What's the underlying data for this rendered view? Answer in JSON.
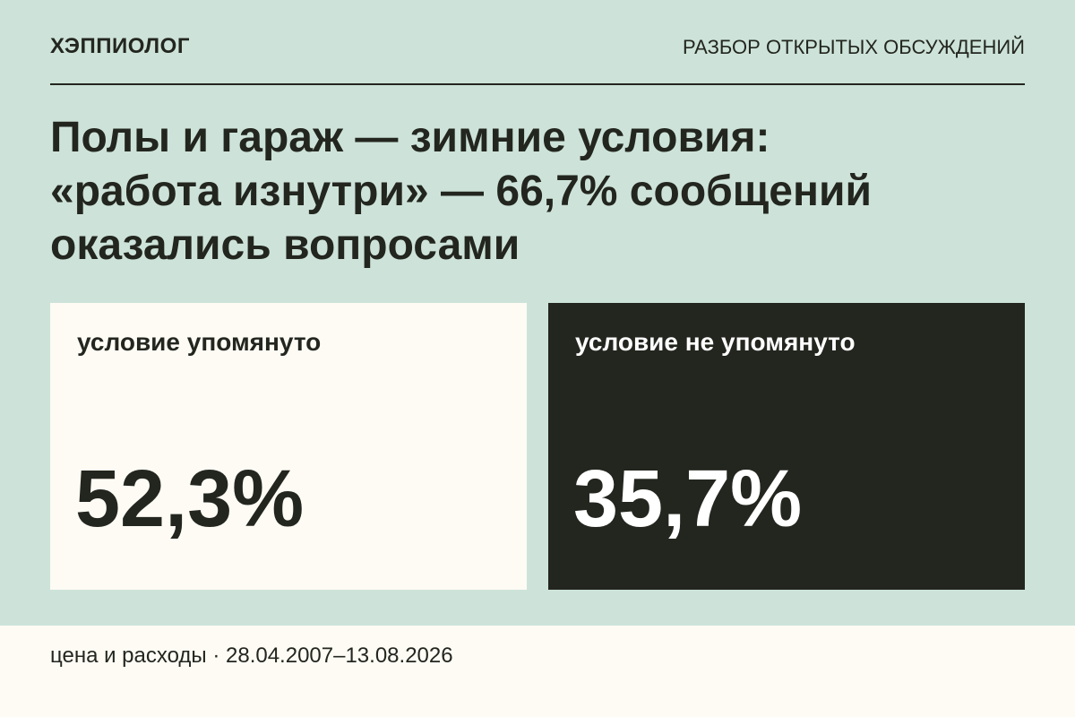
{
  "header": {
    "brand": "ХЭППИОЛОГ",
    "section": "РАЗБОР ОТКРЫТЫХ ОБСУЖДЕНИЙ"
  },
  "title": [
    "Полы и гараж — зимние условия:",
    "«работа изнутри» — 66,7% сообщений",
    "оказались вопросами"
  ],
  "cards": [
    {
      "label": "условие упомянуто",
      "value": "52,3%"
    },
    {
      "label": "условие не упомянуто",
      "value": "35,7%"
    }
  ],
  "footer": "цена и расходы · 28.04.2007–13.08.2026"
}
